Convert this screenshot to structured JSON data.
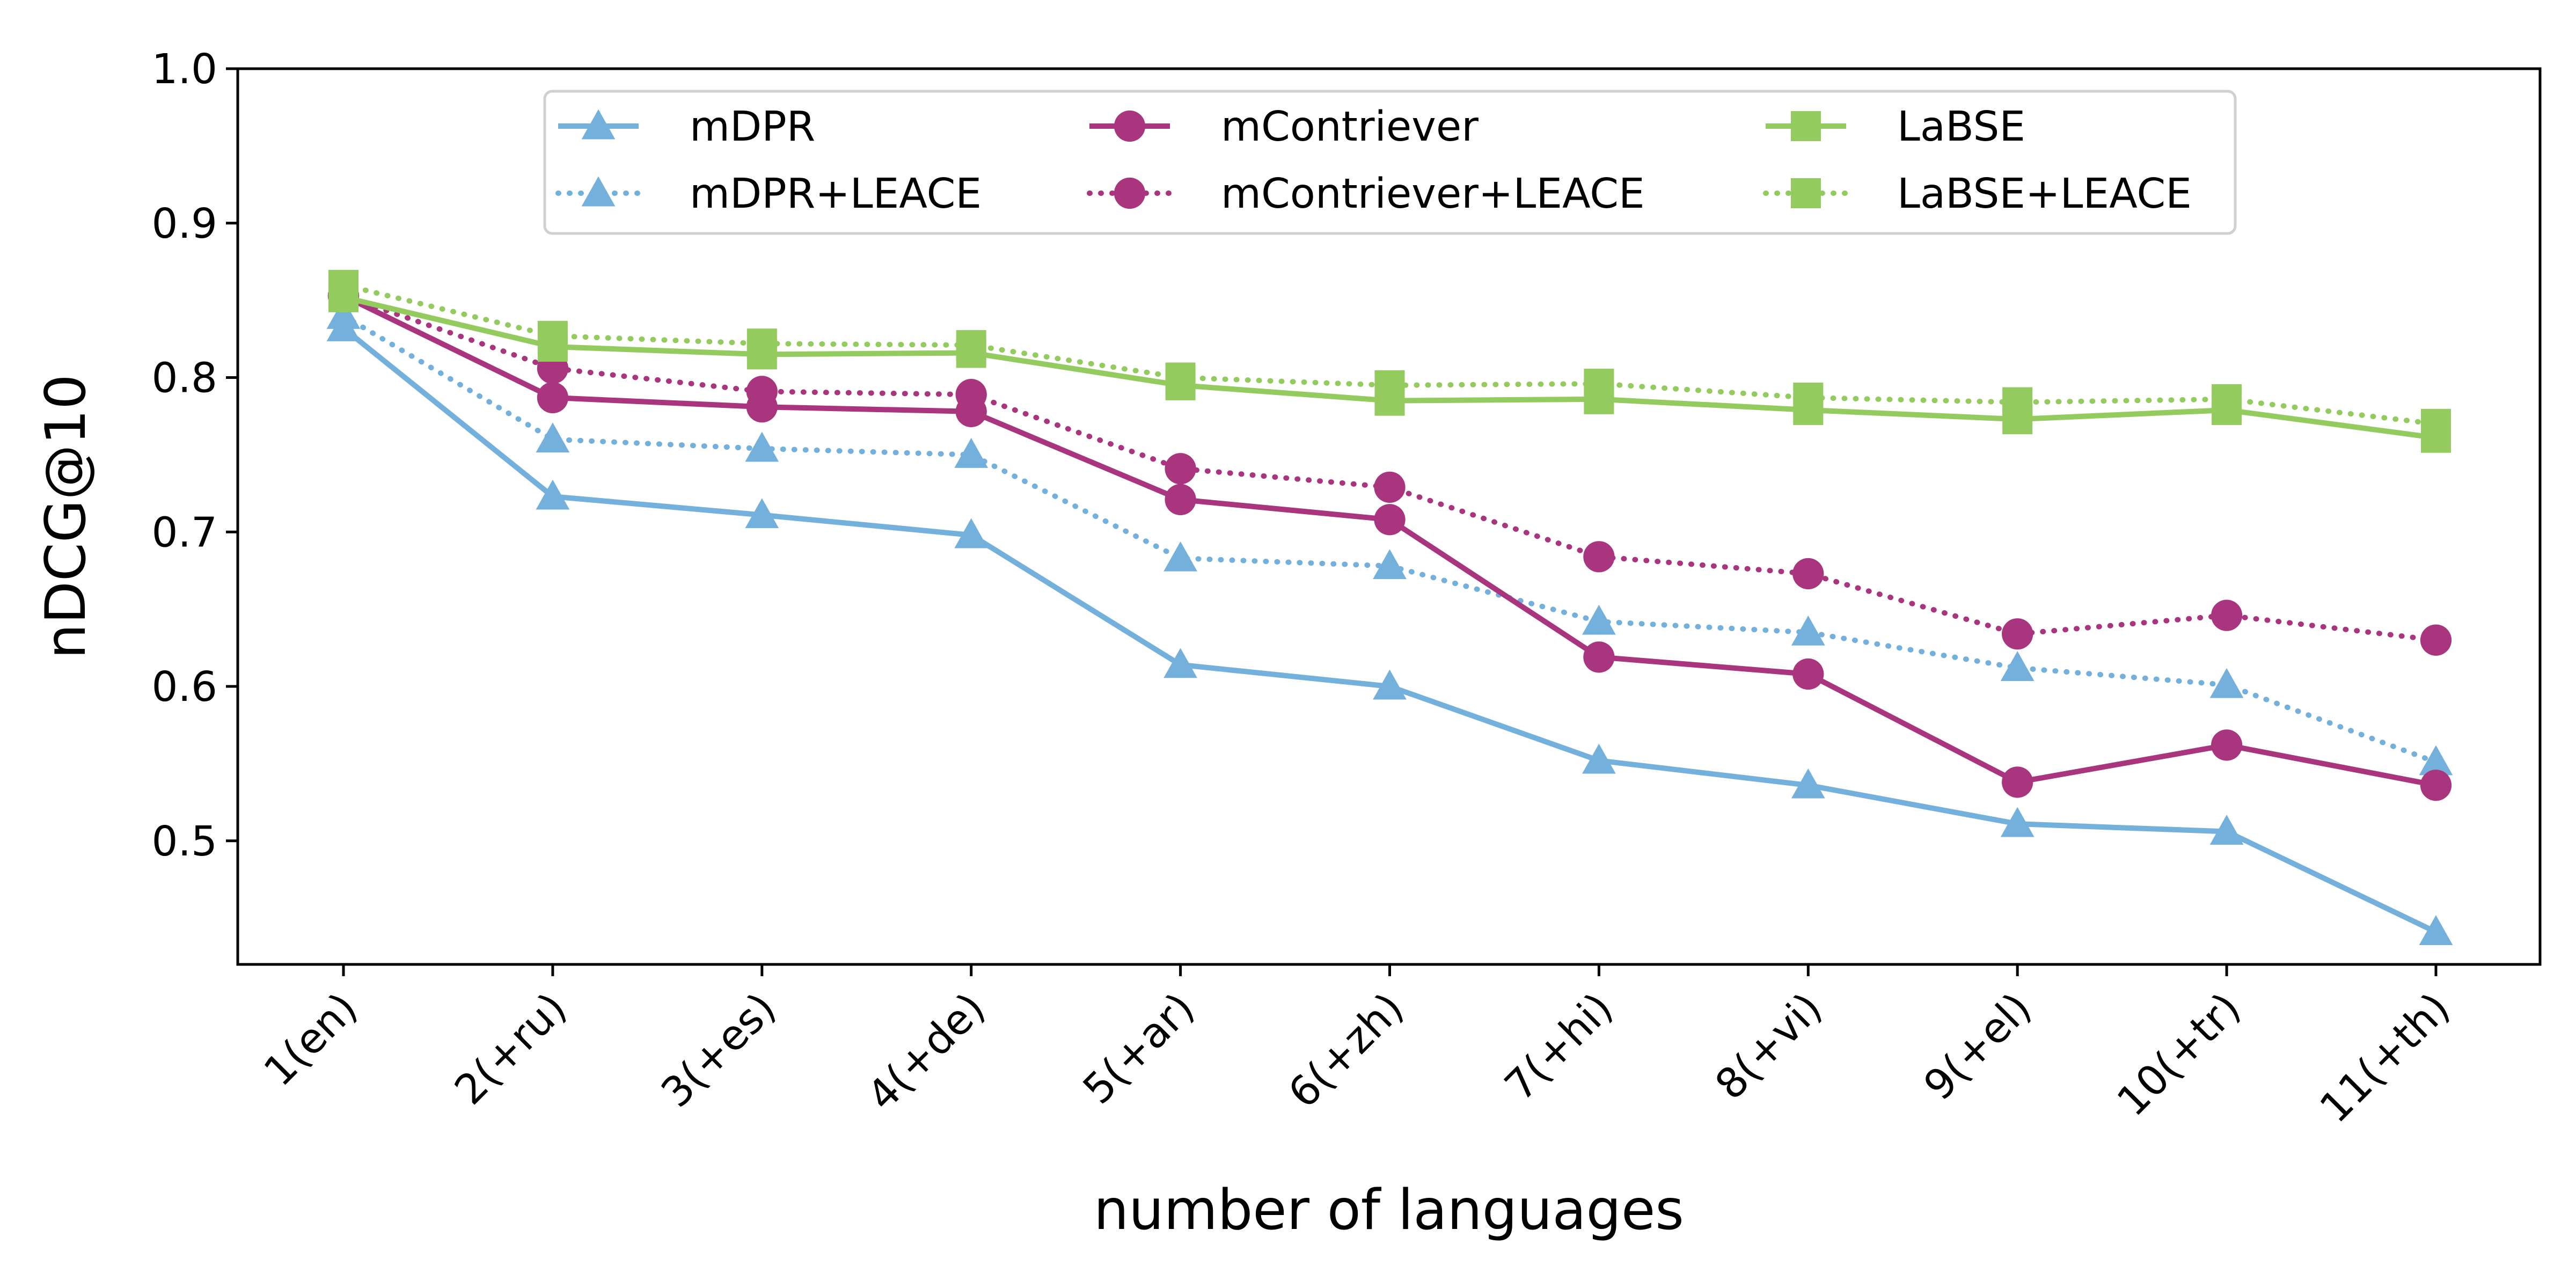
{
  "chart_data": {
    "type": "line",
    "xlabel": "number of languages",
    "ylabel": "nDCG@10",
    "categories": [
      "1(en)",
      "2(+ru)",
      "3(+es)",
      "4(+de)",
      "5(+ar)",
      "6(+zh)",
      "7(+hi)",
      "8(+vi)",
      "9(+el)",
      "10(+tr)",
      "11(+th)"
    ],
    "ylim": [
      0.42,
      1.0
    ],
    "yticks": [
      "0.5",
      "0.6",
      "0.7",
      "0.8",
      "0.9",
      "1.0"
    ],
    "grid": false,
    "legend_position": "top-center",
    "series": [
      {
        "name": "mDPR",
        "color": "#74b0dc",
        "style": "solid",
        "marker": "triangle",
        "values": [
          0.832,
          0.723,
          0.711,
          0.698,
          0.614,
          0.6,
          0.552,
          0.536,
          0.511,
          0.506,
          0.441
        ]
      },
      {
        "name": "mDPR+LEACE",
        "color": "#74b0dc",
        "style": "dotted",
        "marker": "triangle",
        "values": [
          0.84,
          0.76,
          0.754,
          0.75,
          0.683,
          0.678,
          0.642,
          0.635,
          0.612,
          0.601,
          0.551
        ]
      },
      {
        "name": "mContriever",
        "color": "#a8357e",
        "style": "solid",
        "marker": "circle",
        "values": [
          0.853,
          0.787,
          0.781,
          0.778,
          0.721,
          0.708,
          0.619,
          0.608,
          0.538,
          0.562,
          0.536
        ]
      },
      {
        "name": "mContriever+LEACE",
        "color": "#a8357e",
        "style": "dotted",
        "marker": "circle",
        "values": [
          0.853,
          0.806,
          0.791,
          0.789,
          0.741,
          0.729,
          0.684,
          0.673,
          0.634,
          0.646,
          0.63
        ]
      },
      {
        "name": "LaBSE",
        "color": "#94cb5f",
        "style": "solid",
        "marker": "square",
        "values": [
          0.852,
          0.82,
          0.815,
          0.816,
          0.795,
          0.785,
          0.786,
          0.779,
          0.773,
          0.779,
          0.761
        ]
      },
      {
        "name": "LaBSE+LEACE",
        "color": "#94cb5f",
        "style": "dotted",
        "marker": "square",
        "values": [
          0.86,
          0.827,
          0.822,
          0.821,
          0.8,
          0.795,
          0.796,
          0.787,
          0.784,
          0.786,
          0.77
        ]
      }
    ]
  }
}
